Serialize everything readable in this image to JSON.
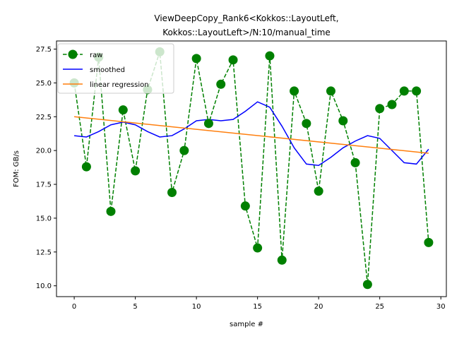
{
  "chart_data": {
    "type": "line",
    "title_lines": [
      "ViewDeepCopy_Rank6<Kokkos::LayoutLeft,",
      "Kokkos::LayoutLeft>/N:10/manual_time"
    ],
    "xlabel": "sample #",
    "ylabel": "FOM: GB/s",
    "xlim": [
      -1.45,
      30.45
    ],
    "ylim": [
      9.2,
      28.1
    ],
    "xticks": [
      0,
      5,
      10,
      15,
      20,
      25,
      30
    ],
    "yticks": [
      10.0,
      12.5,
      15.0,
      17.5,
      20.0,
      22.5,
      25.0,
      27.5
    ],
    "ytick_labels": [
      "10.0",
      "12.5",
      "15.0",
      "17.5",
      "20.0",
      "22.5",
      "25.0",
      "27.5"
    ],
    "grid": false,
    "legend_position": "top-left",
    "series": [
      {
        "name": "raw",
        "style": "dashed-with-markers",
        "color": "#008000",
        "x": [
          0,
          1,
          2,
          3,
          4,
          5,
          6,
          7,
          8,
          9,
          10,
          11,
          12,
          13,
          14,
          15,
          16,
          17,
          18,
          19,
          20,
          21,
          22,
          23,
          24,
          25,
          26,
          27,
          28,
          29
        ],
        "values": [
          25.0,
          18.8,
          26.9,
          15.5,
          23.0,
          18.5,
          24.5,
          27.3,
          16.9,
          20.0,
          26.8,
          22.0,
          24.9,
          26.7,
          15.9,
          12.8,
          27.0,
          11.9,
          24.4,
          22.0,
          17.0,
          24.4,
          22.2,
          19.1,
          10.1,
          23.1,
          23.4,
          24.4,
          24.4,
          13.2
        ]
      },
      {
        "name": "smoothed",
        "style": "solid",
        "color": "#0000ff",
        "x": [
          0,
          1,
          2,
          3,
          4,
          5,
          6,
          7,
          8,
          9,
          10,
          11,
          12,
          13,
          14,
          15,
          16,
          17,
          18,
          19,
          20,
          21,
          22,
          23,
          24,
          25,
          26,
          27,
          28,
          29
        ],
        "values": [
          21.1,
          21.0,
          21.4,
          21.9,
          22.1,
          21.9,
          21.4,
          21.0,
          21.1,
          21.6,
          22.2,
          22.3,
          22.2,
          22.3,
          22.9,
          23.6,
          23.2,
          21.8,
          20.2,
          19.0,
          18.9,
          19.5,
          20.2,
          20.7,
          21.1,
          20.9,
          20.0,
          19.1,
          19.0,
          20.1
        ]
      },
      {
        "name": "linear regression",
        "style": "solid",
        "color": "#ff7f0e",
        "x": [
          0,
          29
        ],
        "values": [
          22.5,
          19.8
        ]
      }
    ]
  }
}
